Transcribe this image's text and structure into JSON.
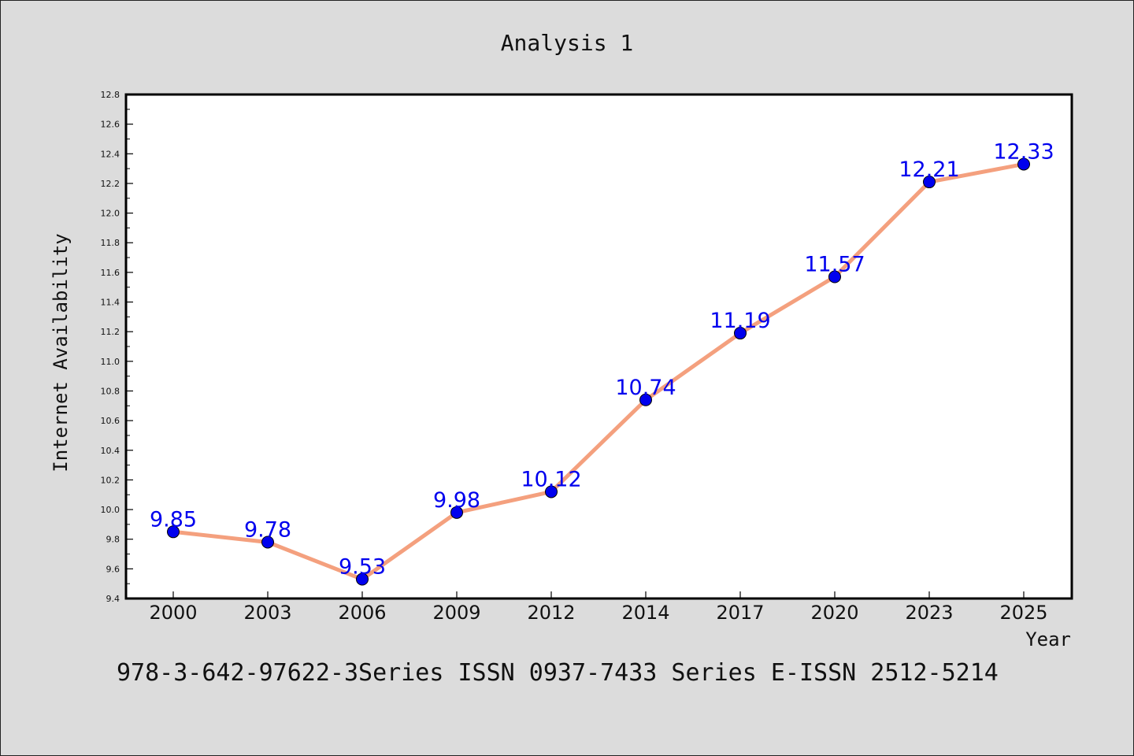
{
  "chart_data": {
    "type": "line",
    "title": "Analysis 1",
    "xlabel": "Year",
    "ylabel": "Internet Availability",
    "categories": [
      "2000",
      "2003",
      "2006",
      "2009",
      "2012",
      "2014",
      "2017",
      "2020",
      "2023",
      "2025"
    ],
    "series": [
      {
        "values": [
          9.85,
          9.78,
          9.53,
          9.98,
          10.12,
          10.74,
          11.19,
          11.57,
          12.21,
          12.33
        ],
        "line_color": "#f4a07e",
        "marker_color": "#0000ee",
        "label_color": "#0000ee"
      }
    ],
    "data_labels": [
      "9.85",
      "9.78",
      "9.53",
      "9.98",
      "10.12",
      "10.74",
      "11.19",
      "11.57",
      "12.21",
      "12.33"
    ],
    "ylim": [
      9.4,
      12.8
    ],
    "yticks": [
      "9.4",
      "9.6",
      "9.8",
      "10.0",
      "10.2",
      "10.4",
      "10.6",
      "10.8",
      "11.0",
      "11.2",
      "11.4",
      "11.6",
      "11.8",
      "12.0",
      "12.2",
      "12.4",
      "12.6",
      "12.8"
    ],
    "grid": false,
    "legend": "none"
  },
  "footer": {
    "text": "978-3-642-97622-3Series ISSN 0937-7433 Series E-ISSN 2512-5214"
  }
}
